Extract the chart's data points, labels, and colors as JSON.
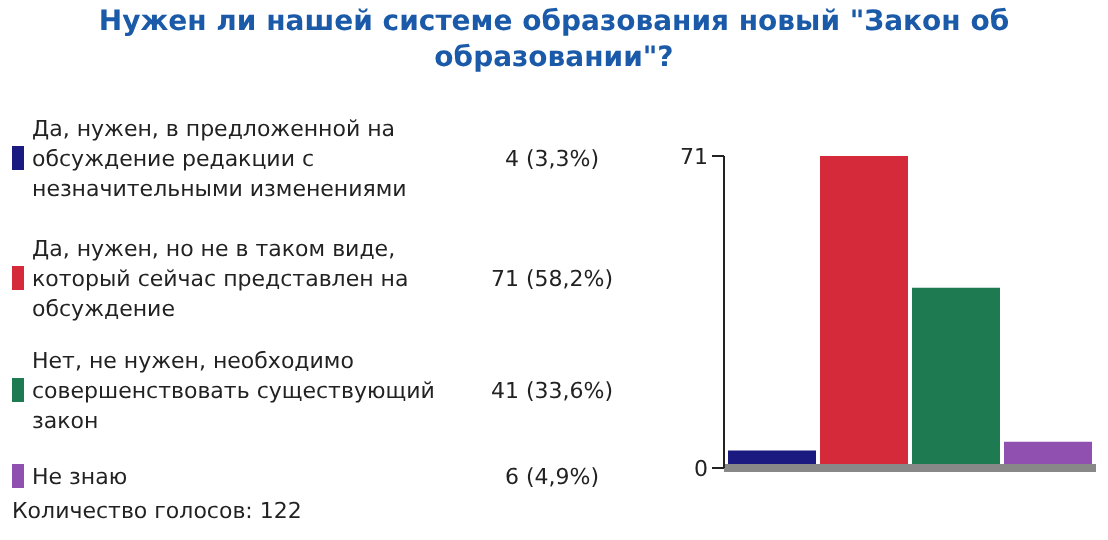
{
  "chart_data": {
    "type": "bar",
    "title": "Нужен ли нашей системе образования новый \"Закон об образовании\"?",
    "categories": [
      null
    ],
    "series": [
      {
        "name": "Да, нужен, в предложенной на обсуждение редакции с незначительными изменениями",
        "color": "#1a1a80",
        "values": [
          4
        ]
      },
      {
        "name": "Да, нужен, но не в таком виде, который сейчас представлен на обсуждение",
        "color": "#d42a3a",
        "values": [
          71
        ]
      },
      {
        "name": "Нет, не нужен, необходимо совершенствовать существующий закон",
        "color": "#1e7a50",
        "values": [
          41
        ]
      },
      {
        "name": "Не знаю",
        "color": "#9050b0",
        "values": [
          6
        ]
      }
    ],
    "legend": "left",
    "ylim": [
      0,
      71
    ],
    "yticks": [
      0,
      71
    ],
    "tick_labels": "y",
    "grid": false,
    "annotations": [
      "4 (3,3%)",
      "71 (58,2%)",
      "41 (33,6%)",
      "6 (4,9%)",
      "Количество голосов: 122"
    ]
  }
}
